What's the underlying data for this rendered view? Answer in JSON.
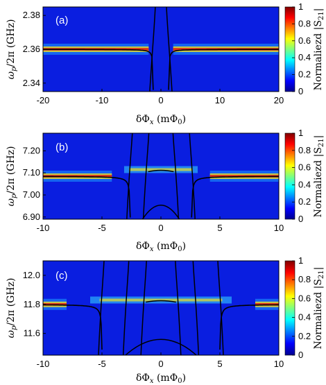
{
  "chart_data": [
    {
      "type": "heatmap",
      "panel_label": "(a)",
      "xlabel": "δΦx (mΦ0)",
      "ylabel": "ωp/2π (GHz)",
      "xlim": [
        -20,
        20
      ],
      "ylim": [
        2.335,
        2.385
      ],
      "xticks": [
        "-20",
        "-10",
        "0",
        "10",
        "20"
      ],
      "yticks": [
        "2.34",
        "2.36",
        "2.38"
      ],
      "colorbar_label": "Normaliezd |S21|",
      "colorbar_ticks": [
        "0",
        "0.2",
        "0.4",
        "0.6",
        "0.8",
        "1"
      ],
      "colormap": "jet",
      "resonance_freq": 2.36,
      "crossing_points": [
        -1.3,
        1.3
      ],
      "trace_color": "#000000"
    },
    {
      "type": "heatmap",
      "panel_label": "(b)",
      "xlabel": "δΦx (mΦ0)",
      "ylabel": "ωp/2π (GHz)",
      "xlim": [
        -10,
        10
      ],
      "ylim": [
        6.89,
        7.28
      ],
      "xticks": [
        "-10",
        "-5",
        "0",
        "5",
        "10"
      ],
      "yticks": [
        "6.90",
        "7.00",
        "7.10",
        "7.20"
      ],
      "colorbar_label": "Normaliezd |S21|",
      "colorbar_ticks": [
        "0",
        "0.2",
        "0.4",
        "0.6",
        "0.8",
        "1"
      ],
      "colormap": "jet",
      "resonance_freq": 7.085,
      "split_level": 7.115,
      "crossing_points": [
        -2.6,
        -1.2,
        1.2,
        2.6
      ],
      "trace_color": "#000000"
    },
    {
      "type": "heatmap",
      "panel_label": "(c)",
      "xlabel": "δΦx (mΦ0)",
      "ylabel": "ωp/2π (GHz)",
      "xlim": [
        -10,
        10
      ],
      "ylim": [
        11.45,
        12.1
      ],
      "xticks": [
        "-10",
        "-5",
        "0",
        "5",
        "10"
      ],
      "yticks": [
        "11.6",
        "11.8",
        "12.0"
      ],
      "colorbar_label": "Normaliezd |S21|",
      "colorbar_ticks": [
        "0",
        "0.2",
        "0.4",
        "0.6",
        "0.8",
        "1"
      ],
      "colormap": "jet",
      "resonance_freq": 11.8,
      "split_level": 11.83,
      "crossing_points": [
        -5.0,
        -2.9,
        -1.4,
        1.4,
        2.9,
        5.0
      ],
      "trace_color": "#000000"
    }
  ]
}
